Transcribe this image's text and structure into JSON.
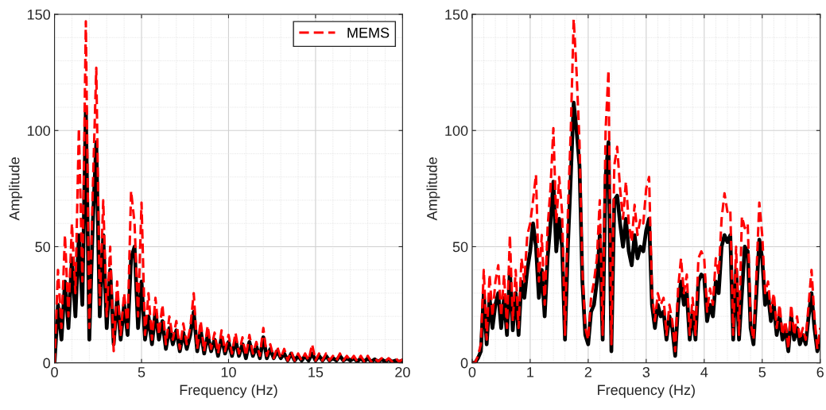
{
  "chart_data": [
    {
      "type": "line",
      "xlabel": "Frequency (Hz)",
      "ylabel": "Amplitude",
      "xlim": [
        0,
        20
      ],
      "ylim": [
        0,
        150
      ],
      "xticks": [
        0,
        5,
        10,
        15,
        20
      ],
      "yticks": [
        0,
        50,
        100,
        150
      ],
      "grid": true,
      "legend": "top right",
      "x": [
        0,
        0.2,
        0.4,
        0.6,
        0.8,
        1.0,
        1.2,
        1.4,
        1.6,
        1.8,
        2.0,
        2.2,
        2.4,
        2.6,
        2.8,
        3.0,
        3.2,
        3.4,
        3.6,
        3.8,
        4.0,
        4.2,
        4.4,
        4.6,
        4.8,
        5.0,
        5.2,
        5.4,
        5.6,
        5.8,
        6.0,
        6.2,
        6.4,
        6.6,
        6.8,
        7.0,
        7.2,
        7.4,
        7.6,
        7.8,
        8.0,
        8.2,
        8.4,
        8.6,
        8.8,
        9.0,
        9.2,
        9.4,
        9.6,
        9.8,
        10,
        10.2,
        10.4,
        10.6,
        10.8,
        11,
        11.2,
        11.4,
        11.6,
        11.8,
        12,
        12.2,
        12.4,
        12.6,
        12.8,
        13,
        13.2,
        13.4,
        13.6,
        13.8,
        14,
        14.2,
        14.4,
        14.6,
        14.8,
        15,
        15.2,
        15.4,
        15.6,
        15.8,
        16,
        16.2,
        16.4,
        16.6,
        16.8,
        17,
        17.2,
        17.4,
        17.6,
        17.8,
        18,
        18.2,
        18.4,
        18.6,
        18.8,
        19,
        19.2,
        19.4,
        19.6,
        19.8,
        20
      ],
      "series": [
        {
          "color": "#000000",
          "line_style": "solid",
          "values": [
            0,
            25,
            10,
            35,
            15,
            45,
            20,
            55,
            25,
            110,
            10,
            60,
            95,
            20,
            55,
            15,
            40,
            8,
            28,
            10,
            25,
            12,
            45,
            50,
            15,
            35,
            10,
            20,
            8,
            22,
            10,
            18,
            6,
            15,
            8,
            14,
            5,
            13,
            6,
            12,
            22,
            5,
            14,
            4,
            12,
            5,
            10,
            3,
            11,
            4,
            9,
            3,
            10,
            3,
            8,
            2,
            9,
            3,
            7,
            2,
            11,
            2,
            6,
            2,
            5,
            2,
            4,
            1,
            4,
            1,
            3,
            1,
            3,
            1,
            4,
            1,
            3,
            1,
            3,
            1,
            2,
            1,
            3,
            1,
            2,
            1,
            2,
            0.5,
            2,
            0.5,
            2,
            0.5,
            1.5,
            0.5,
            1.5,
            0.5,
            1.5,
            0.5,
            1,
            0.5,
            1
          ]
        },
        {
          "name": "MEMS",
          "color": "#ff0000",
          "line_style": "dashed",
          "values": [
            0,
            40,
            15,
            55,
            20,
            60,
            30,
            101,
            35,
            147,
            15,
            75,
            127,
            25,
            70,
            20,
            50,
            5,
            35,
            12,
            30,
            15,
            74,
            60,
            20,
            69,
            12,
            30,
            10,
            28,
            12,
            25,
            8,
            20,
            10,
            18,
            6,
            17,
            8,
            15,
            30,
            6,
            18,
            5,
            16,
            6,
            13,
            4,
            14,
            5,
            12,
            4,
            13,
            4,
            11,
            3,
            12,
            4,
            9,
            3,
            15,
            3,
            8,
            2,
            7,
            2,
            6,
            1,
            5,
            1,
            4,
            1,
            4,
            1,
            8,
            1,
            4,
            1,
            4,
            1,
            3,
            1,
            4,
            1,
            3,
            1,
            3,
            0.5,
            3,
            0.5,
            3,
            0.5,
            2,
            0.5,
            2,
            0.5,
            2,
            0.5,
            2,
            0.5,
            1.5
          ]
        }
      ]
    },
    {
      "type": "line",
      "xlabel": "Frequency (Hz)",
      "ylabel": "Amplitude",
      "xlim": [
        0,
        6
      ],
      "ylim": [
        0,
        150
      ],
      "xticks": [
        0,
        1,
        2,
        3,
        4,
        5,
        6
      ],
      "yticks": [
        0,
        50,
        100,
        150
      ],
      "grid": true,
      "x": [
        0,
        0.05,
        0.1,
        0.15,
        0.2,
        0.25,
        0.3,
        0.35,
        0.4,
        0.45,
        0.5,
        0.55,
        0.6,
        0.65,
        0.7,
        0.75,
        0.8,
        0.85,
        0.9,
        0.95,
        1.0,
        1.05,
        1.1,
        1.15,
        1.2,
        1.25,
        1.3,
        1.35,
        1.4,
        1.45,
        1.5,
        1.55,
        1.6,
        1.65,
        1.7,
        1.75,
        1.8,
        1.85,
        1.9,
        1.95,
        2.0,
        2.05,
        2.1,
        2.15,
        2.2,
        2.25,
        2.3,
        2.35,
        2.4,
        2.45,
        2.5,
        2.55,
        2.6,
        2.65,
        2.7,
        2.75,
        2.8,
        2.85,
        2.9,
        2.95,
        3.0,
        3.05,
        3.1,
        3.15,
        3.2,
        3.25,
        3.3,
        3.35,
        3.4,
        3.45,
        3.5,
        3.55,
        3.6,
        3.65,
        3.7,
        3.75,
        3.8,
        3.85,
        3.9,
        3.95,
        4.0,
        4.05,
        4.1,
        4.15,
        4.2,
        4.25,
        4.3,
        4.35,
        4.4,
        4.45,
        4.5,
        4.55,
        4.6,
        4.65,
        4.7,
        4.75,
        4.8,
        4.85,
        4.9,
        4.95,
        5.0,
        5.05,
        5.1,
        5.15,
        5.2,
        5.25,
        5.3,
        5.35,
        5.4,
        5.45,
        5.5,
        5.55,
        5.6,
        5.65,
        5.7,
        5.75,
        5.8,
        5.85,
        5.9,
        5.95,
        6.0
      ],
      "series": [
        {
          "color": "#000000",
          "line_style": "solid",
          "values": [
            0,
            0,
            2,
            5,
            30,
            8,
            28,
            15,
            25,
            30,
            15,
            28,
            12,
            40,
            14,
            30,
            12,
            35,
            28,
            40,
            48,
            60,
            50,
            28,
            40,
            20,
            45,
            60,
            78,
            48,
            62,
            50,
            10,
            50,
            80,
            112,
            100,
            85,
            35,
            12,
            8,
            22,
            25,
            35,
            55,
            10,
            80,
            95,
            5,
            70,
            72,
            60,
            50,
            62,
            48,
            42,
            55,
            45,
            50,
            48,
            57,
            62,
            25,
            15,
            25,
            20,
            22,
            10,
            20,
            15,
            3,
            25,
            35,
            25,
            30,
            10,
            22,
            10,
            35,
            38,
            37,
            18,
            25,
            20,
            35,
            30,
            50,
            55,
            52,
            55,
            10,
            40,
            10,
            30,
            50,
            48,
            15,
            8,
            30,
            53,
            45,
            25,
            30,
            18,
            25,
            12,
            20,
            10,
            15,
            5,
            20,
            10,
            15,
            8,
            12,
            8,
            20,
            30,
            15,
            5,
            10
          ]
        },
        {
          "color": "#ff0000",
          "line_style": "dashed",
          "values": [
            0,
            0,
            3,
            8,
            40,
            10,
            38,
            20,
            35,
            42,
            20,
            38,
            15,
            55,
            18,
            40,
            15,
            45,
            35,
            55,
            60,
            70,
            81,
            35,
            55,
            25,
            58,
            75,
            101,
            60,
            80,
            65,
            12,
            65,
            100,
            148,
            125,
            95,
            40,
            15,
            10,
            28,
            35,
            45,
            70,
            12,
            100,
            126,
            8,
            85,
            93,
            75,
            62,
            78,
            60,
            52,
            68,
            55,
            62,
            60,
            75,
            80,
            30,
            18,
            30,
            25,
            28,
            12,
            25,
            18,
            5,
            32,
            45,
            30,
            38,
            12,
            28,
            12,
            45,
            48,
            45,
            22,
            32,
            25,
            45,
            38,
            62,
            73,
            65,
            66,
            12,
            50,
            12,
            63,
            58,
            60,
            18,
            10,
            38,
            69,
            55,
            30,
            35,
            22,
            30,
            15,
            25,
            12,
            18,
            6,
            25,
            12,
            20,
            10,
            15,
            10,
            25,
            40,
            20,
            6,
            15
          ]
        }
      ]
    }
  ]
}
